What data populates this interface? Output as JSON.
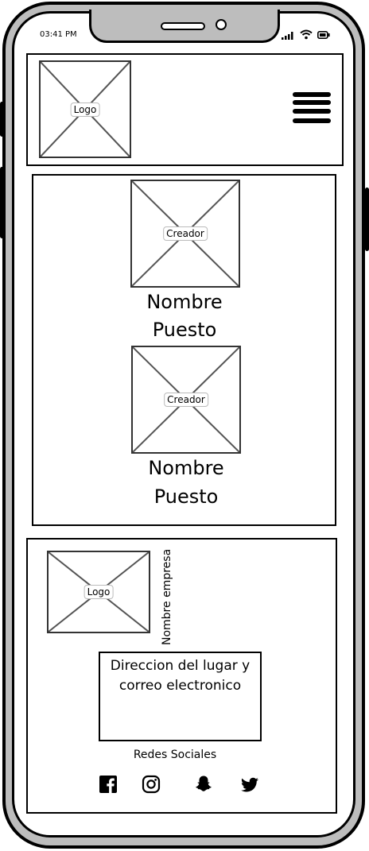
{
  "status_bar": {
    "time": "03:41 PM"
  },
  "header": {
    "logo_label": "Logo",
    "menu_icon": "hamburger-menu-icon"
  },
  "creators": [
    {
      "image_label": "Creador",
      "name": "Nombre",
      "role": "Puesto"
    },
    {
      "image_label": "Creador",
      "name": "Nombre",
      "role": "Puesto"
    }
  ],
  "footer": {
    "logo_label": "Logo",
    "company_name": "Nombre empresa",
    "address_line1": "Direccion del lugar y",
    "address_line2": "correo electronico",
    "social_title": "Redes Sociales",
    "social_icons": [
      "facebook-icon",
      "instagram-icon",
      "snapchat-icon",
      "twitter-icon"
    ]
  }
}
